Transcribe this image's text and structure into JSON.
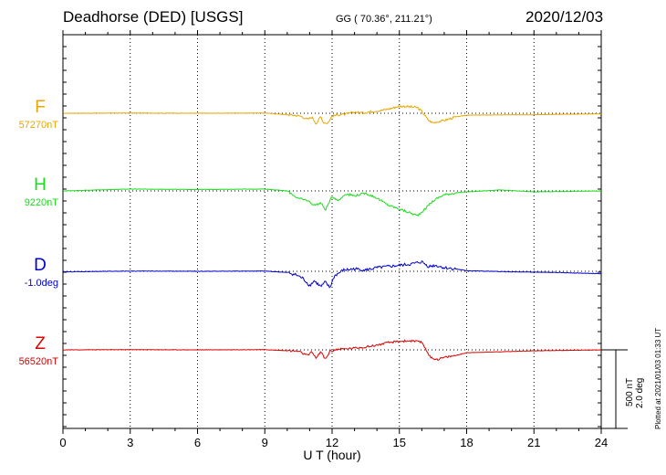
{
  "header": {
    "station": "Deadhorse (DED)  [USGS]",
    "coords": "GG ( 70.36°, 211.21°)",
    "date": "2020/12/03"
  },
  "footer": {
    "scale_nt": "500 nT",
    "scale_deg": "2.0 deg",
    "plotted": "Plotted at 2021/01/03 01:33 UT"
  },
  "chart_data": {
    "type": "line",
    "title": "Deadhorse (DED)  [USGS]",
    "xlabel": "U T (hour)",
    "ylabel": "",
    "xlim": [
      0,
      24
    ],
    "x_ticks": [
      0,
      3,
      6,
      9,
      12,
      15,
      18,
      21,
      24
    ],
    "x_tick_labels": [
      "0",
      "3",
      "6",
      "9",
      "12",
      "15",
      "18",
      "21",
      "24"
    ],
    "grid": true,
    "scale_bar": {
      "nT": 500,
      "deg": 2.0
    },
    "series": [
      {
        "name": "F",
        "baseline_label": "57270nT",
        "unit": "nT",
        "color": "#e8a600",
        "x": [
          0,
          3,
          6,
          9,
          10.3,
          10.6,
          10.9,
          11.1,
          11.3,
          11.5,
          11.6,
          11.8,
          12.0,
          12.3,
          12.6,
          13.0,
          13.4,
          13.8,
          14.2,
          14.6,
          15.0,
          15.4,
          15.8,
          16.0,
          16.3,
          16.5,
          17.0,
          17.5,
          18.0,
          21,
          24
        ],
        "values": [
          0,
          5,
          0,
          5,
          -40,
          -60,
          -130,
          -80,
          -220,
          -60,
          -190,
          -210,
          -60,
          -30,
          -20,
          25,
          10,
          40,
          60,
          100,
          150,
          140,
          120,
          40,
          -150,
          -200,
          -150,
          -80,
          -40,
          -30,
          -10
        ]
      },
      {
        "name": "H",
        "baseline_label": "9220nT",
        "unit": "nT",
        "color": "#18dd18",
        "x": [
          0,
          3,
          6,
          9,
          10.0,
          10.5,
          10.9,
          11.2,
          11.5,
          11.7,
          12.0,
          12.3,
          12.6,
          13.0,
          13.5,
          14.0,
          14.5,
          15.0,
          15.4,
          15.8,
          16.1,
          16.4,
          16.7,
          17.0,
          17.5,
          18.0,
          19.5,
          21,
          24
        ],
        "values": [
          0,
          40,
          30,
          40,
          0,
          -160,
          -200,
          -300,
          -250,
          -400,
          -120,
          -200,
          -60,
          -100,
          -50,
          -150,
          -300,
          -380,
          -450,
          -520,
          -400,
          -250,
          -150,
          -80,
          -40,
          -20,
          20,
          -20,
          0
        ]
      },
      {
        "name": "D",
        "baseline_label": "-1.0deg",
        "unit": "deg",
        "color": "#0000cc",
        "x": [
          0,
          3,
          6,
          9,
          10.0,
          10.4,
          10.7,
          11.0,
          11.2,
          11.5,
          11.7,
          11.9,
          12.1,
          12.5,
          13.0,
          13.5,
          14.0,
          14.5,
          15.0,
          15.5,
          16.0,
          16.3,
          16.6,
          17.0,
          17.5,
          18.0,
          20,
          22,
          24
        ],
        "values": [
          -0.05,
          0.02,
          0,
          0.02,
          -0.1,
          -0.3,
          -0.6,
          -1.2,
          -0.8,
          -1.3,
          -0.9,
          -1.4,
          -0.4,
          0.1,
          0.2,
          0.1,
          0.3,
          0.4,
          0.5,
          0.6,
          0.8,
          0.4,
          0.5,
          0.3,
          0.2,
          0.05,
          -0.05,
          -0.1,
          -0.2
        ]
      },
      {
        "name": "Z",
        "baseline_label": "56520nT",
        "unit": "nT",
        "color": "#dd0000",
        "x": [
          0,
          3,
          6,
          9,
          10.5,
          10.9,
          11.1,
          11.3,
          11.5,
          11.7,
          11.9,
          12.2,
          12.6,
          13.0,
          13.5,
          14.0,
          14.5,
          15.0,
          15.5,
          16.0,
          16.2,
          16.4,
          16.7,
          17.0,
          17.5,
          18.0,
          21,
          24
        ],
        "values": [
          0,
          5,
          0,
          5,
          -30,
          -120,
          -50,
          -170,
          -40,
          -200,
          -30,
          10,
          20,
          40,
          60,
          100,
          150,
          180,
          190,
          160,
          0,
          -170,
          -200,
          -160,
          -120,
          -60,
          -20,
          0
        ]
      }
    ]
  }
}
